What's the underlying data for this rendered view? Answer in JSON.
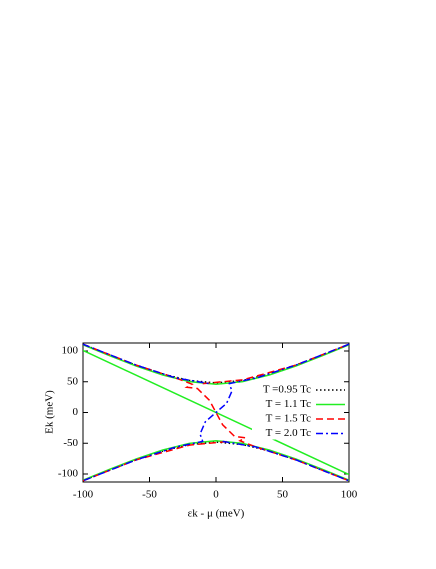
{
  "chart_data": {
    "type": "line",
    "xlabel": "εk - μ  (meV)",
    "ylabel": "Ek  (meV)",
    "xlim": [
      -100,
      100
    ],
    "xticks": [
      -100,
      -50,
      0,
      50,
      100
    ],
    "ylim": [
      -113,
      113
    ],
    "yticks": [
      -100,
      -50,
      0,
      50,
      100
    ],
    "legend": "right",
    "series": [
      {
        "name": "T =0.95 Tc",
        "color": "#000000",
        "line_style": "dotted",
        "x": [
          -100,
          -80,
          -60,
          -40,
          -20,
          0,
          20,
          40,
          60,
          80,
          100,
          null,
          -100,
          -80,
          -60,
          -40,
          -20,
          0,
          20,
          40,
          60,
          80,
          100
        ],
        "values": [
          110.9,
          93.3,
          76.8,
          62.5,
          52,
          48,
          52,
          62.5,
          76.8,
          93.3,
          110.9,
          null,
          -110.9,
          -93.3,
          -76.8,
          -62.5,
          -52,
          -48,
          -52,
          -62.5,
          -76.8,
          -93.3,
          -110.9
        ]
      },
      {
        "name": "T = 1.1 Tc",
        "color": "#22ee22",
        "line_style": "solid",
        "x": [
          -100,
          -80,
          -60,
          -40,
          -20,
          0,
          20,
          40,
          60,
          80,
          100,
          null,
          -100,
          -80,
          -60,
          -40,
          -20,
          0,
          20,
          40,
          60,
          80,
          100,
          null,
          -100,
          100
        ],
        "values": [
          110.1,
          92.3,
          75.6,
          61,
          50.2,
          46,
          50.2,
          61,
          75.6,
          92.3,
          110.1,
          null,
          -110.1,
          -92.3,
          -75.6,
          -61,
          -50.2,
          -46,
          -50.2,
          -61,
          -75.6,
          -92.3,
          -110.1,
          null,
          101,
          -101
        ]
      },
      {
        "name": "T = 1.5 Tc",
        "color": "#ff0000",
        "line_style": "dashed",
        "x": [
          -100,
          -60,
          -30,
          -18,
          -22,
          -14,
          -5,
          0,
          5,
          14,
          22,
          18,
          30,
          60,
          100,
          null,
          -10,
          20,
          60,
          100,
          null,
          -100,
          -60,
          -20,
          10
        ],
        "values": [
          111,
          77,
          56,
          46,
          41,
          39,
          20,
          0,
          -20,
          -39,
          -41,
          -46,
          -56,
          -77,
          -111,
          null,
          47,
          53,
          77,
          111,
          null,
          -111,
          -77,
          -53,
          -47
        ]
      },
      {
        "name": "T = 2.0 Tc",
        "color": "#0000ff",
        "line_style": "dashdot",
        "x": [
          100,
          60,
          30,
          10,
          12,
          8,
          0,
          -8,
          -12,
          -10,
          -30,
          -60,
          -100,
          null,
          -100,
          -60,
          -30,
          -5,
          null,
          5,
          30,
          60,
          100
        ],
        "values": [
          111,
          77,
          56,
          47,
          35,
          15,
          0,
          -15,
          -35,
          -47,
          -56,
          -77,
          -111,
          null,
          111,
          77,
          56,
          47,
          null,
          -47,
          -56,
          -77,
          -111
        ]
      }
    ]
  }
}
